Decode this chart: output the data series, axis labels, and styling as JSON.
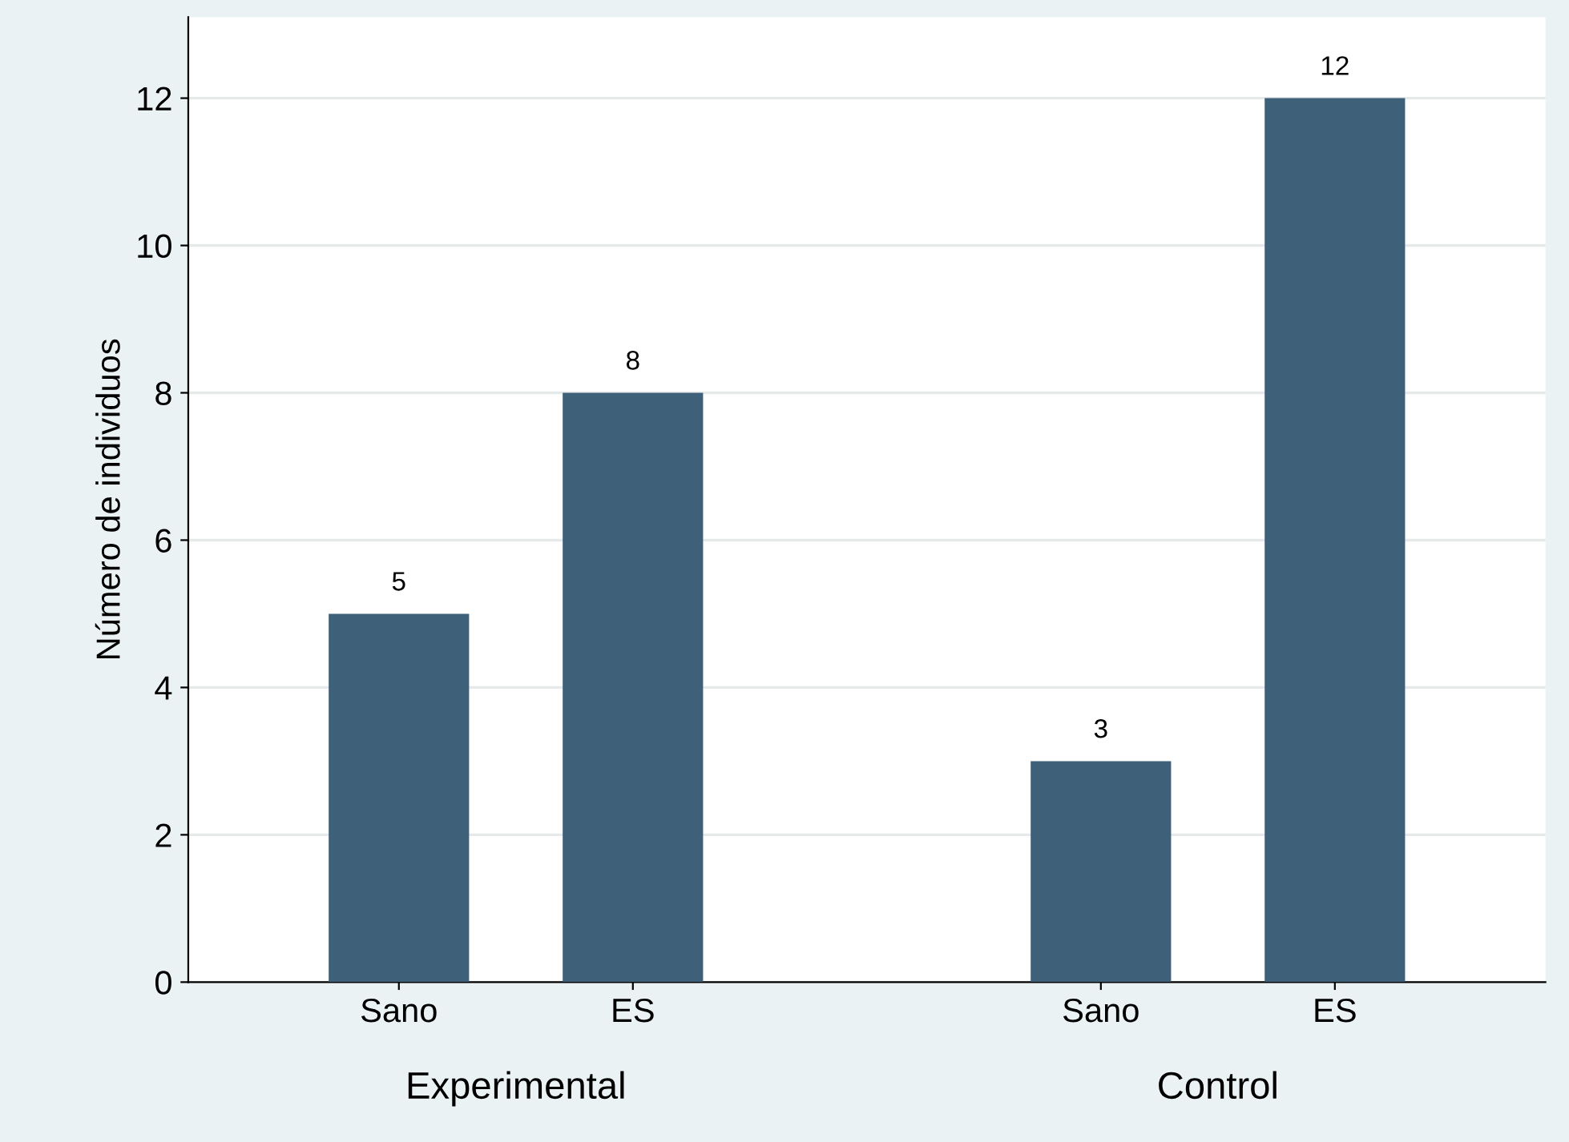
{
  "chart_data": {
    "type": "bar",
    "ylabel": "Número de individuos",
    "categories": [
      "Sano",
      "ES",
      null,
      "Sano",
      "ES"
    ],
    "values": [
      5,
      8,
      null,
      3,
      12
    ],
    "color": "#3e6079",
    "ylim": [
      0,
      13.1
    ],
    "yticks": [
      0,
      2,
      4,
      6,
      8,
      10,
      12
    ],
    "grid": "y",
    "data_labels": true,
    "annotations": [
      "Experimental",
      "Control"
    ]
  }
}
